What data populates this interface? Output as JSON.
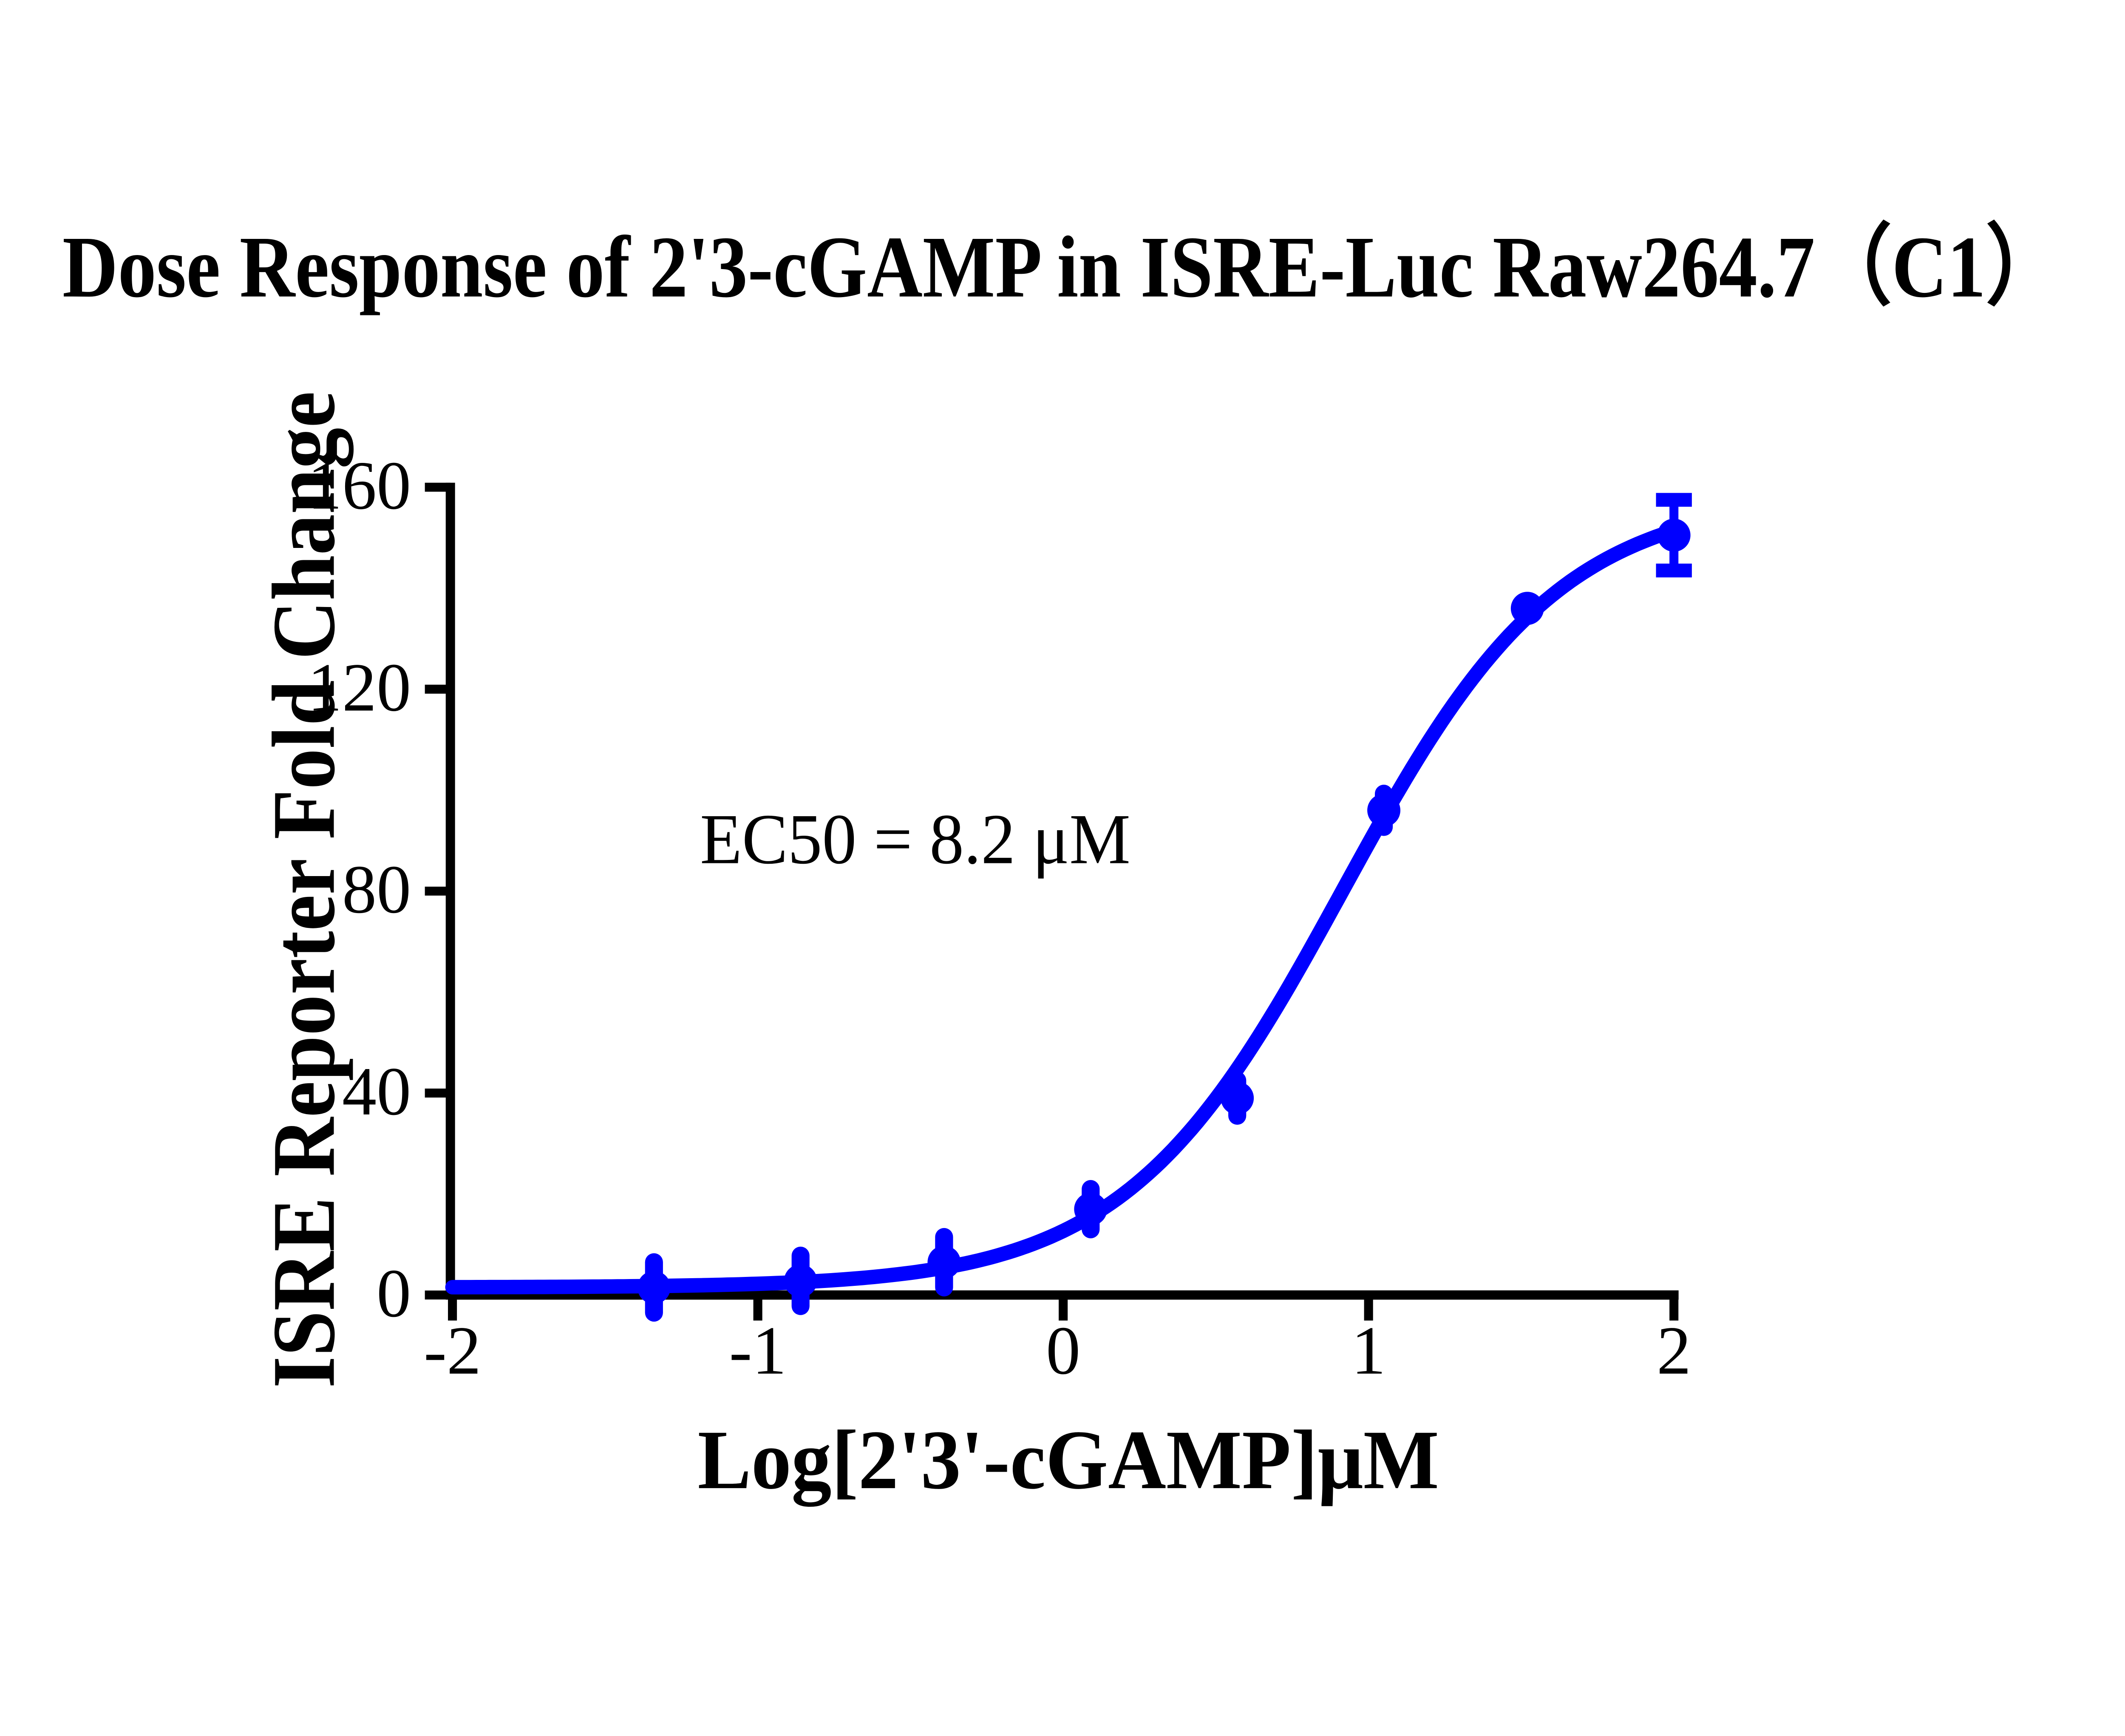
{
  "title": "Dose Response of 2'3-cGAMP in ISRE-Luc Raw264.7（C1）",
  "colors": {
    "curve": "#0000FF",
    "axis": "#000000",
    "background": "#FFFFFF"
  },
  "chart_data": {
    "type": "scatter",
    "title": "Dose Response of 2'3-cGAMP in ISRE-Luc Raw264.7（C1）",
    "xlabel": "Log[2'3'-cGAMP]μM",
    "ylabel": "ISRE Reporter Fold Change",
    "annotation": "EC50 = 8.2 μM",
    "ec50_uM": 8.2,
    "xlim": [
      -2,
      2
    ],
    "ylim": [
      0,
      160
    ],
    "xticks": [
      "-2",
      "-1",
      "0",
      "1",
      "2"
    ],
    "xtick_values": [
      -2,
      -1,
      0,
      1,
      2
    ],
    "yticks": [
      "0",
      "40",
      "80",
      "120",
      "160"
    ],
    "ytick_values": [
      0,
      40,
      80,
      120,
      160
    ],
    "grid": false,
    "legend": "none",
    "series": [
      {
        "name": "2'3-cGAMP",
        "marker": "circle",
        "color": "#0000FF",
        "points": [
          {
            "x": -1.34,
            "y": 1.5,
            "err": 5,
            "caps": false
          },
          {
            "x": -0.86,
            "y": 2.8,
            "err": 5,
            "caps": false
          },
          {
            "x": -0.39,
            "y": 6.5,
            "err": 5,
            "caps": false
          },
          {
            "x": 0.09,
            "y": 17,
            "err": 4,
            "caps": false
          },
          {
            "x": 0.57,
            "y": 39,
            "err": 3.5,
            "caps": false
          },
          {
            "x": 1.05,
            "y": 96,
            "err": 3.3,
            "caps": false
          },
          {
            "x": 1.52,
            "y": 136,
            "err": 0,
            "caps": false
          },
          {
            "x": 2.0,
            "y": 150.5,
            "err": 7,
            "caps": true
          }
        ]
      }
    ],
    "fit_curve": {
      "model": "4PL",
      "bottom": 1.5,
      "top": 158.5,
      "logEC50": 0.914,
      "hill_slope": 1.22
    }
  }
}
